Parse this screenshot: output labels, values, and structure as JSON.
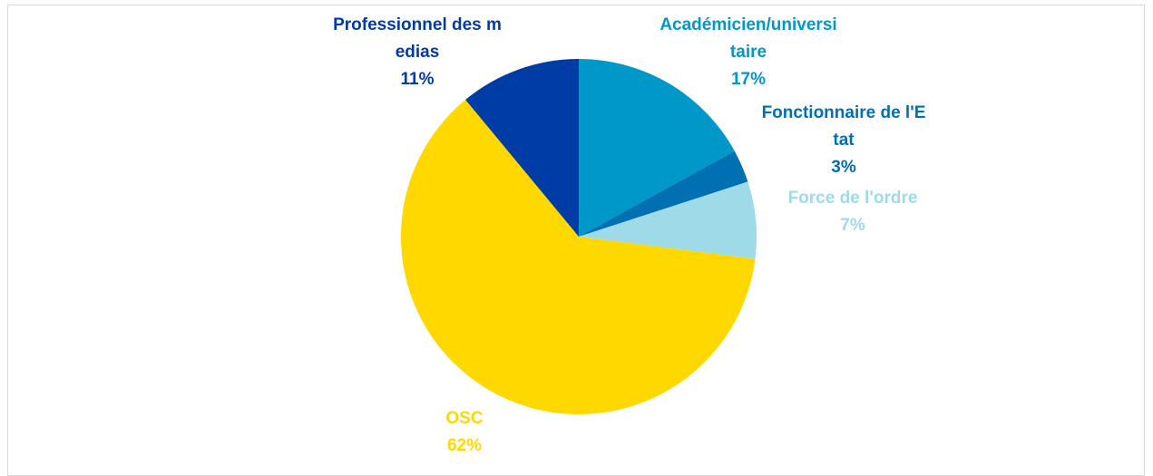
{
  "chart_data": {
    "type": "pie",
    "categories": [
      "Académicien/universitaire",
      "Fonctionnaire de l'Etat",
      "Force de l'ordre",
      "OSC",
      "Professionnel des medias"
    ],
    "values": [
      17,
      3,
      7,
      62,
      11
    ],
    "value_labels": [
      "17%",
      "3%",
      "7%",
      "62%",
      "11%"
    ],
    "colors": [
      "#0097c9",
      "#0070b2",
      "#9fdae9",
      "#ffd800",
      "#003ca6"
    ]
  }
}
